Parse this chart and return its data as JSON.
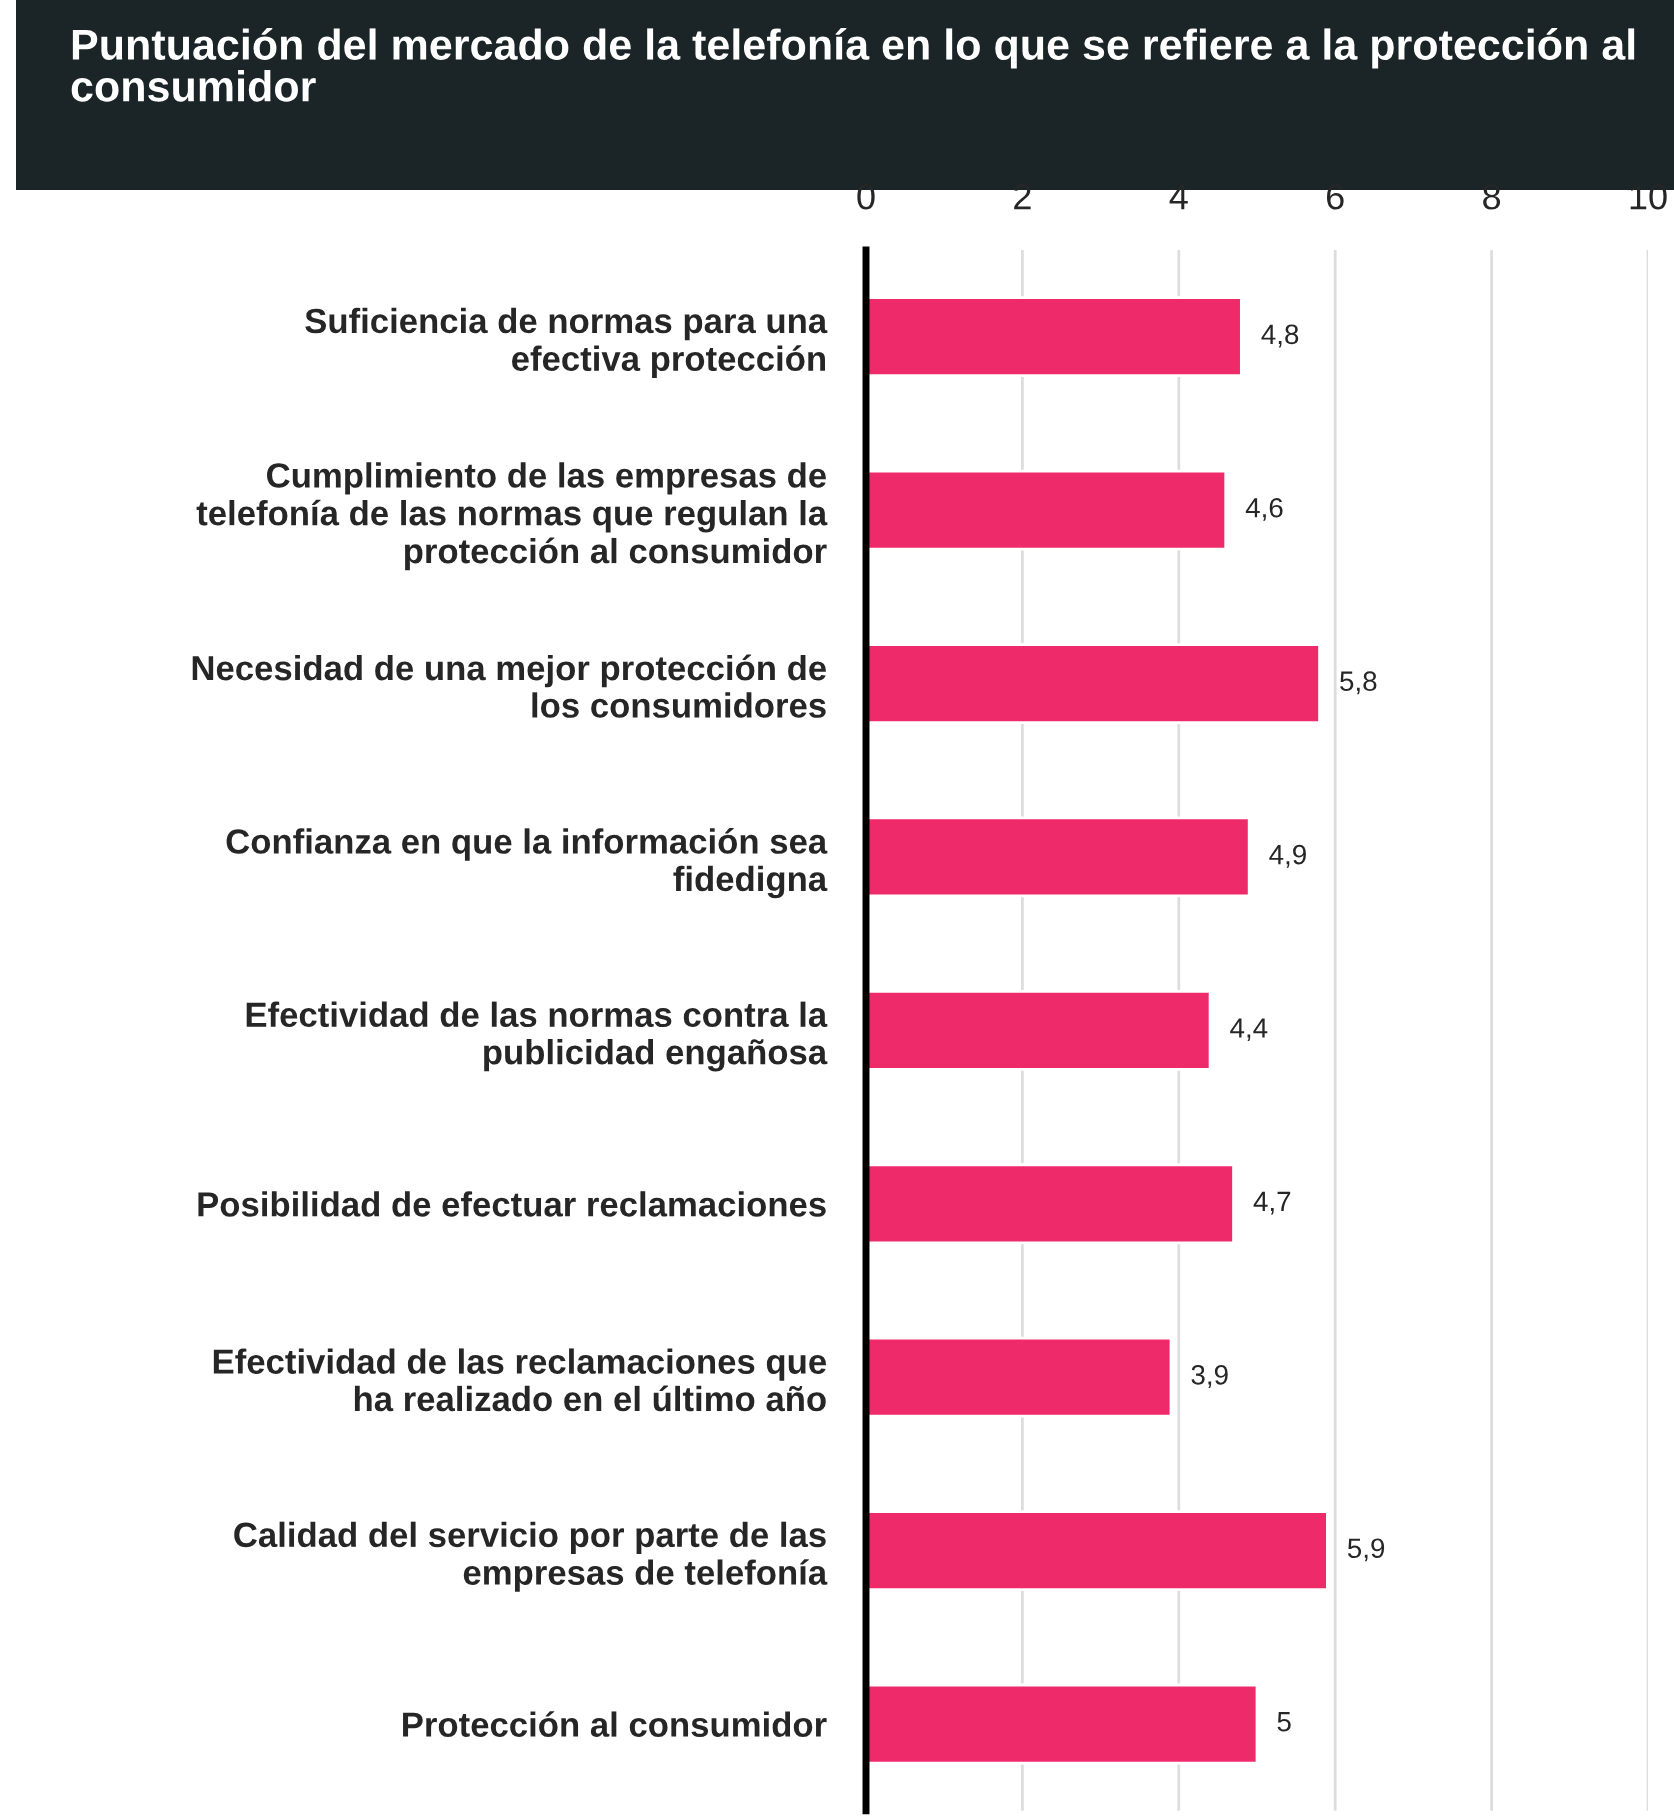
{
  "chart_data": {
    "type": "bar",
    "orientation": "horizontal",
    "title": "Puntuación del mercado de la telefonía en lo que se refiere a la protección al consumidor",
    "categories": [
      "Suficiencia de normas para una\nefectiva protección",
      "Cumplimiento de las empresas de\ntelefonía de las normas que regulan la\nprotección al consumidor",
      "Necesidad de una mejor protección de\nlos consumidores",
      "Confianza en que la información sea\nfidedigna",
      "Efectividad de las normas contra la\npublicidad engañosa",
      "Posibilidad de efectuar reclamaciones",
      "Efectividad de las reclamaciones que\nha realizado en el último año",
      "Calidad del servicio por parte de las\nempresas de telefonía",
      "Protección al consumidor"
    ],
    "values": [
      4.8,
      4.6,
      5.8,
      4.9,
      4.4,
      4.7,
      3.9,
      5.9,
      5
    ],
    "value_labels": [
      "4,8",
      "4,6",
      "5,8",
      "4,9",
      "4,4",
      "4,7",
      "3,9",
      "5,9",
      "5"
    ],
    "color": "#ee2a6b",
    "xlim": [
      0,
      10
    ],
    "xticks": [
      0,
      2,
      4,
      6,
      8,
      10
    ],
    "grid": "x",
    "legend": false
  }
}
